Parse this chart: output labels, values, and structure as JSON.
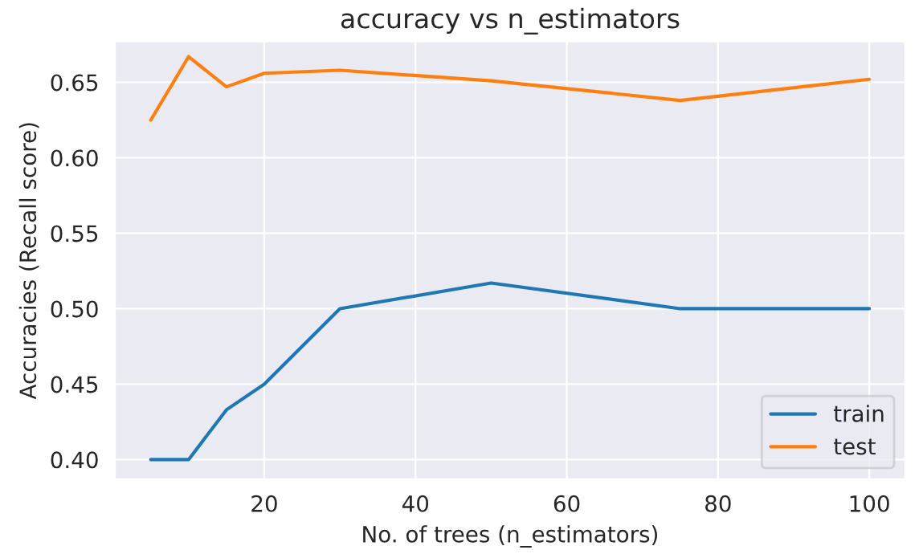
{
  "chart_data": {
    "type": "line",
    "title": "accuracy vs n_estimators",
    "xlabel": "No. of trees (n_estimators)",
    "ylabel": "Accuracies (Recall score)",
    "x": [
      5,
      10,
      15,
      20,
      30,
      50,
      75,
      100
    ],
    "series": [
      {
        "name": "train",
        "color": "#1f77b4",
        "values": [
          0.4,
          0.4,
          0.433,
          0.45,
          0.5,
          0.517,
          0.5,
          0.5
        ]
      },
      {
        "name": "test",
        "color": "#ff7f0e",
        "values": [
          0.625,
          0.667,
          0.647,
          0.656,
          0.658,
          0.651,
          0.638,
          0.652
        ]
      }
    ],
    "xlim": [
      0.25,
      104.75
    ],
    "ylim": [
      0.387,
      0.677
    ],
    "xticks": [
      20,
      40,
      60,
      80,
      100
    ],
    "yticks": [
      {
        "value": 0.4,
        "label": "0.40"
      },
      0.45,
      {
        "value": 0.5,
        "label": "0.50"
      },
      0.55,
      {
        "value": 0.6,
        "label": "0.60"
      },
      0.65
    ],
    "grid": true,
    "legend": "bottom right",
    "marker": "none",
    "line_style": "solid"
  }
}
